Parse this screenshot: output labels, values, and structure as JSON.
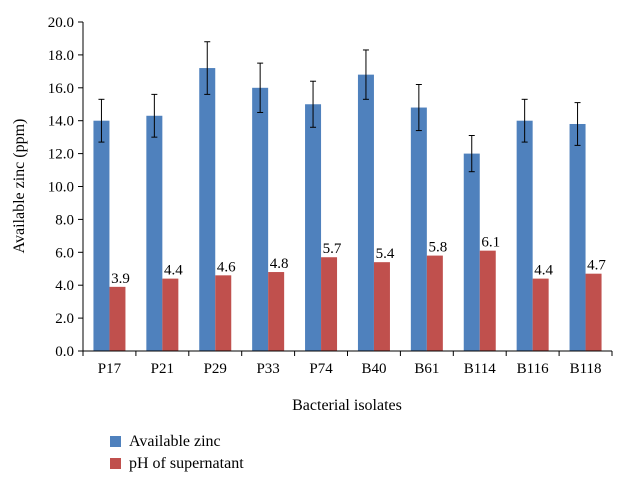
{
  "chart_data": {
    "type": "bar",
    "title": "",
    "xlabel": "Bacterial isolates",
    "ylabel": "Available zinc (ppm)",
    "ylim": [
      0,
      20
    ],
    "yticks": [
      "0.0",
      "2.0",
      "4.0",
      "6.0",
      "8.0",
      "10.0",
      "12.0",
      "14.0",
      "16.0",
      "18.0",
      "20.0"
    ],
    "categories": [
      "P17",
      "P21",
      "P29",
      "P33",
      "P74",
      "B40",
      "B61",
      "B114",
      "B116",
      "B118"
    ],
    "series": [
      {
        "name": "Available zinc",
        "color": "#4f81bd",
        "values": [
          14.0,
          14.3,
          17.2,
          16.0,
          15.0,
          16.8,
          14.8,
          12.0,
          14.0,
          13.8
        ],
        "error_plus_minus": [
          1.3,
          1.3,
          1.6,
          1.5,
          1.4,
          1.5,
          1.4,
          1.1,
          1.3,
          1.3
        ]
      },
      {
        "name": "pH of supernatant",
        "color": "#c0504d",
        "values": [
          3.9,
          4.4,
          4.6,
          4.8,
          5.7,
          5.4,
          5.8,
          6.1,
          4.4,
          4.7
        ],
        "data_labels": [
          "3.9",
          "4.4",
          "4.6",
          "4.8",
          "5.7",
          "5.4",
          "5.8",
          "6.1",
          "4.4",
          "4.7"
        ]
      }
    ],
    "grid": false,
    "legend_position": "bottom-left"
  }
}
